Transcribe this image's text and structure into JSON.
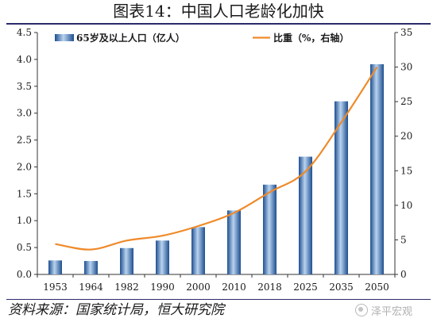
{
  "header": {
    "title": "图表14：中国人口老龄化加快"
  },
  "footer": {
    "source": "资料来源：国家统计局，恒大研究院",
    "watermark": "泽平宏观"
  },
  "colors": {
    "bar": "#2e6fb5",
    "line": "#ef8a2a",
    "rule": "#2b2b6b"
  },
  "chart_data": {
    "type": "bar",
    "categories": [
      "1953",
      "1964",
      "1982",
      "1990",
      "2000",
      "2010",
      "2018",
      "2025",
      "2035",
      "2050"
    ],
    "series": [
      {
        "name": "65岁及以上人口（亿人）",
        "type": "bar",
        "axis": "left",
        "values": [
          0.26,
          0.25,
          0.49,
          0.63,
          0.88,
          1.19,
          1.67,
          2.19,
          3.22,
          3.91
        ]
      },
      {
        "name": "比重（%，右轴）",
        "type": "line",
        "axis": "right",
        "values": [
          4.4,
          3.6,
          4.9,
          5.6,
          7.0,
          8.9,
          11.9,
          14.9,
          22.0,
          30.0
        ]
      }
    ],
    "y_left": {
      "ylim": [
        0,
        4.5
      ],
      "ticks": [
        "0.0",
        "0.5",
        "1.0",
        "1.5",
        "2.0",
        "2.5",
        "3.0",
        "3.5",
        "4.0",
        "4.5"
      ]
    },
    "y_right": {
      "ylim": [
        0,
        35
      ],
      "ticks": [
        "0",
        "5",
        "10",
        "15",
        "20",
        "25",
        "30",
        "35"
      ]
    },
    "grid": false,
    "legend": "top"
  }
}
